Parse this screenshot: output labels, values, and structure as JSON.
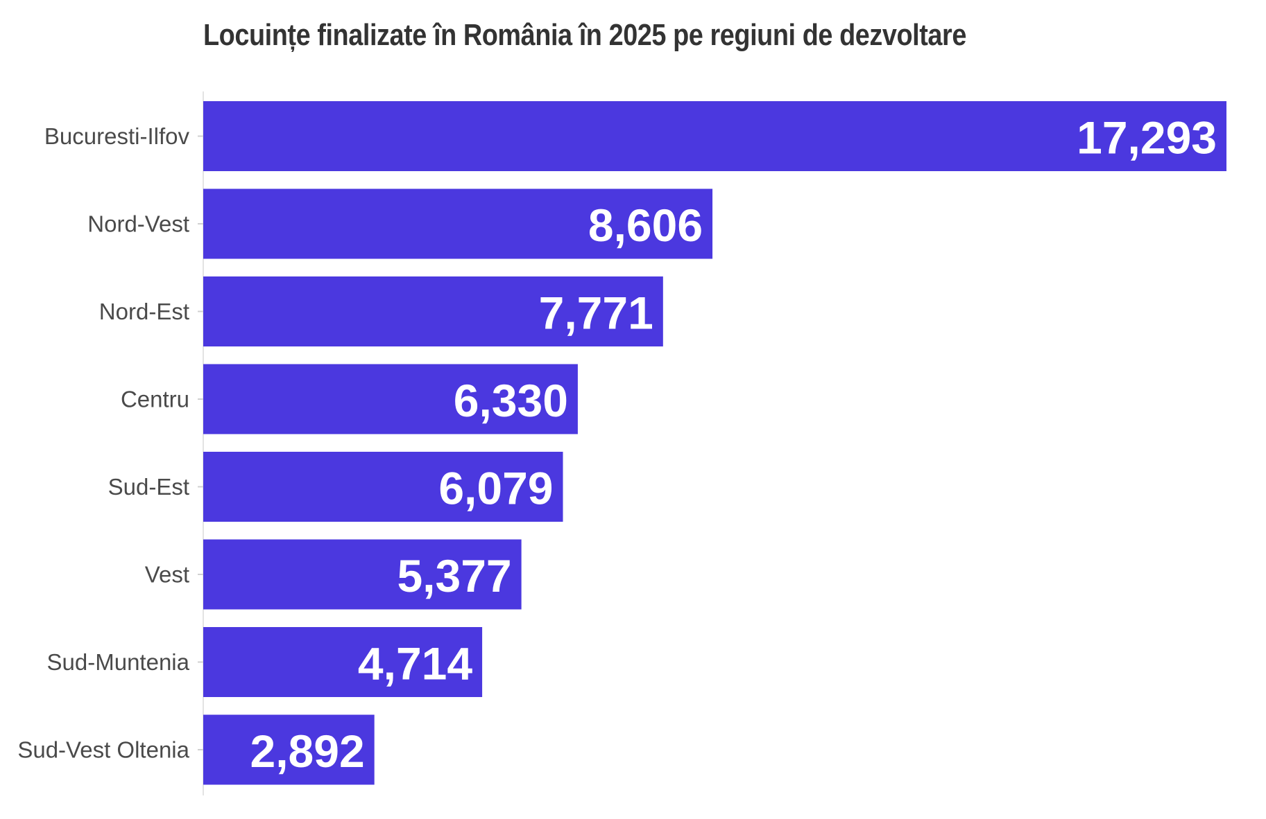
{
  "colors": {
    "bar": "#4b38df",
    "axis_line": "#e3e3e3",
    "tick": "#d0d0d0",
    "title_text": "#333333",
    "label_text": "#4a4a4a",
    "value_text": "#ffffff"
  },
  "chart_data": {
    "type": "bar",
    "orientation": "horizontal",
    "title": "Locuințe finalizate în România în 2025 pe regiuni de dezvoltare",
    "categories": [
      "Bucuresti-Ilfov",
      "Nord-Vest",
      "Nord-Est",
      "Centru",
      "Sud-Est",
      "Vest",
      "Sud-Muntenia",
      "Sud-Vest Oltenia"
    ],
    "values": [
      17293,
      8606,
      7771,
      6330,
      6079,
      5377,
      4714,
      2892
    ],
    "value_labels": [
      "17,293",
      "8,606",
      "7,771",
      "6,330",
      "6,079",
      "5,377",
      "4,714",
      "2,892"
    ],
    "xlim": [
      0,
      17293
    ],
    "grid": false,
    "legend": "none"
  }
}
